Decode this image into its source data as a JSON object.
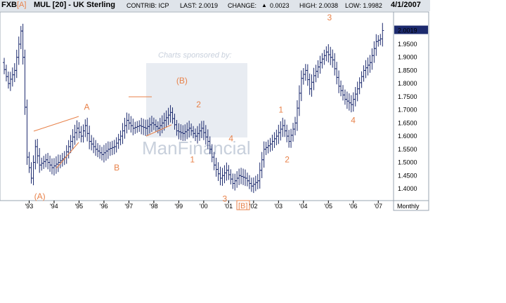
{
  "header": {
    "symbol": "FXB",
    "symbol_label": "[A]",
    "title": "MUL [20] - UK Sterling",
    "contrib": "CONTRIB: ICP",
    "last": "LAST: 2.0019",
    "change_label": "CHANGE:",
    "change_arrow": "▲",
    "change_value": "0.0023",
    "high": "HIGH: 2.0038",
    "low": "LOW: 1.9982",
    "date": "4/1/2007"
  },
  "watermark": {
    "sponsor": "Charts sponsored by:",
    "brand": "ManFinancial"
  },
  "chart_data": {
    "type": "line",
    "bar_style": "ohlc",
    "frequency_label": "Monthly",
    "last_price_label": "2.0019",
    "ylim": [
      1.36,
      2.07
    ],
    "y_ticks": [
      "1.4000",
      "1.4500",
      "1.5000",
      "1.5500",
      "1.6000",
      "1.6500",
      "1.7000",
      "1.7500",
      "1.8000",
      "1.8500",
      "1.9000",
      "1.9500",
      "2.0019"
    ],
    "y_tick_values": [
      1.4,
      1.45,
      1.5,
      1.55,
      1.6,
      1.65,
      1.7,
      1.75,
      1.8,
      1.85,
      1.9,
      1.95,
      2.0019
    ],
    "x_ticks": [
      "'93",
      "'94",
      "'95",
      "'96",
      "'97",
      "'98",
      "'99",
      "'00",
      "'01",
      "'02",
      "'03",
      "'04",
      "'05",
      "'06",
      "'07"
    ],
    "x_tick_values": [
      1993,
      1994,
      1995,
      1996,
      1997,
      1998,
      1999,
      2000,
      2001,
      2002,
      2003,
      2004,
      2005,
      2006,
      2007
    ],
    "xlim": [
      1992.0,
      2007.5
    ],
    "series": [
      {
        "x": [
          1992.0,
          1992.25,
          1992.5,
          1992.67,
          1992.75,
          1992.83,
          1993.0,
          1993.17,
          1993.33,
          1993.5,
          1993.75,
          1994.0,
          1994.25,
          1994.5,
          1994.75,
          1995.0,
          1995.17,
          1995.33,
          1995.5,
          1995.75,
          1996.0,
          1996.25,
          1996.5,
          1996.75,
          1997.0,
          1997.25,
          1997.5,
          1997.75,
          1998.0,
          1998.25,
          1998.5,
          1998.75,
          1999.0,
          1999.25,
          1999.5,
          1999.75,
          2000.0,
          2000.25,
          2000.5,
          2000.75,
          2001.0,
          2001.25,
          2001.5,
          2001.75,
          2002.0,
          2002.25,
          2002.5,
          2002.75,
          2003.0,
          2003.25,
          2003.5,
          2003.75,
          2004.0,
          2004.17,
          2004.33,
          2004.5,
          2004.75,
          2005.0,
          2005.25,
          2005.5,
          2005.75,
          2006.0,
          2006.25,
          2006.5,
          2006.75,
          2007.0,
          2007.17,
          2007.25
        ],
        "y": [
          1.88,
          1.8,
          1.85,
          1.95,
          2.0,
          1.9,
          1.52,
          1.44,
          1.56,
          1.49,
          1.51,
          1.48,
          1.5,
          1.52,
          1.58,
          1.63,
          1.6,
          1.64,
          1.58,
          1.55,
          1.53,
          1.55,
          1.56,
          1.6,
          1.66,
          1.63,
          1.64,
          1.63,
          1.65,
          1.63,
          1.66,
          1.69,
          1.62,
          1.61,
          1.63,
          1.6,
          1.63,
          1.58,
          1.49,
          1.44,
          1.47,
          1.42,
          1.45,
          1.44,
          1.41,
          1.43,
          1.55,
          1.57,
          1.6,
          1.64,
          1.58,
          1.65,
          1.82,
          1.85,
          1.78,
          1.83,
          1.88,
          1.92,
          1.89,
          1.79,
          1.74,
          1.72,
          1.78,
          1.85,
          1.88,
          1.96,
          1.97,
          2.0019
        ]
      }
    ]
  },
  "annotations": [
    {
      "label": "A",
      "x": 1995.2,
      "y": 1.7
    },
    {
      "label": "B",
      "x": 1996.4,
      "y": 1.47
    },
    {
      "label": "(A)",
      "x": 1993.2,
      "y": 1.36
    },
    {
      "label": "(B)",
      "x": 1998.9,
      "y": 1.8
    },
    {
      "label": "2",
      "x": 1999.7,
      "y": 1.71
    },
    {
      "label": "1",
      "x": 1999.45,
      "y": 1.5
    },
    {
      "label": "4",
      "x": 2001.0,
      "y": 1.58
    },
    {
      "label": "3",
      "x": 2000.75,
      "y": 1.35
    },
    {
      "label": "1",
      "x": 2003.0,
      "y": 1.69
    },
    {
      "label": "2",
      "x": 2003.25,
      "y": 1.5
    },
    {
      "label": "3",
      "x": 2004.95,
      "y": 2.04
    },
    {
      "label": "4",
      "x": 2005.9,
      "y": 1.65
    }
  ],
  "x_bracket_label": "[B]"
}
